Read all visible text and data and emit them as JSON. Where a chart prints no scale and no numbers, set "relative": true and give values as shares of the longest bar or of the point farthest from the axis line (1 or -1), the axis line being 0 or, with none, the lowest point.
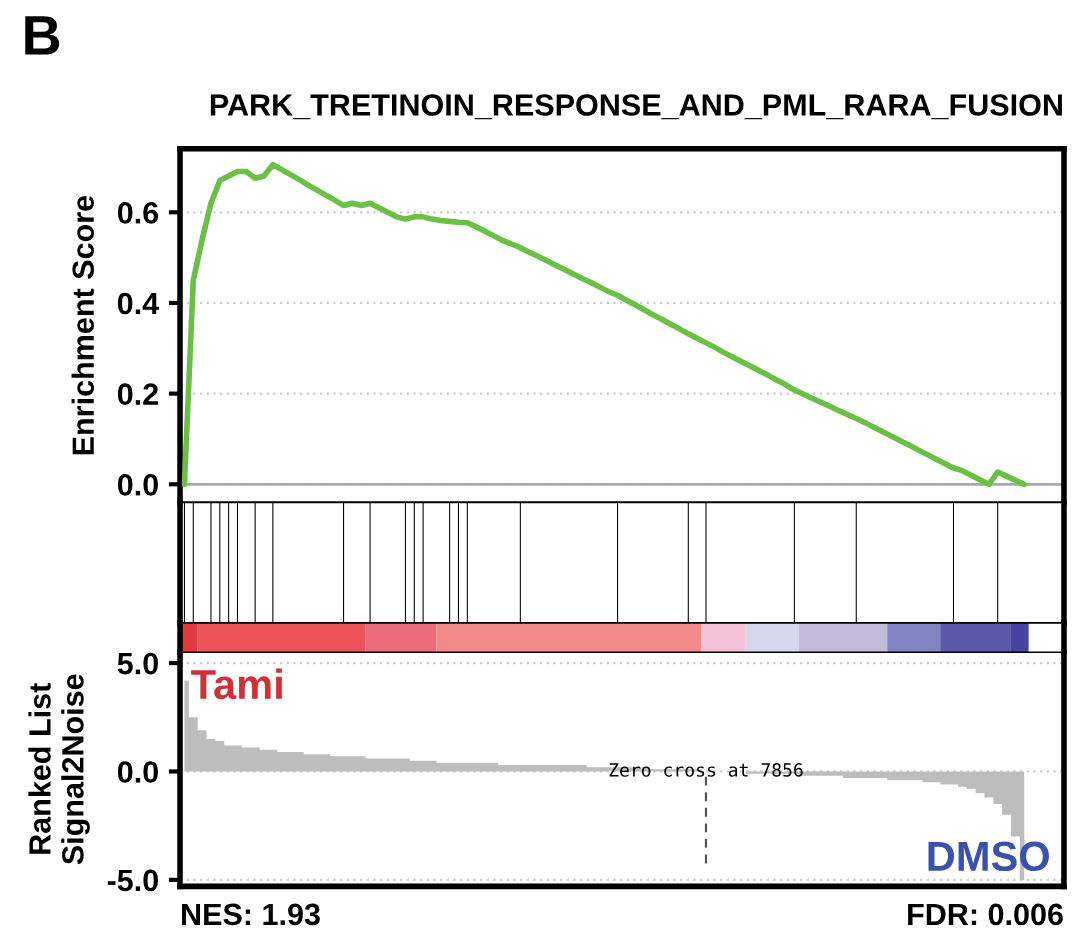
{
  "chart_data": [
    {
      "type": "line",
      "title": "PARK_TRETINOIN_RESPONSE_AND_PML_RARA_FUSION",
      "ylabel": "Enrichment Score",
      "annotations": [
        "B"
      ],
      "categories": [
        null,
        null,
        null,
        null,
        null,
        null,
        null,
        null,
        null,
        null,
        null,
        null,
        null,
        null,
        null,
        null,
        null,
        null,
        null,
        null,
        null,
        null,
        null,
        null,
        null,
        null,
        null,
        null,
        null,
        null,
        null,
        null,
        null,
        null,
        null,
        null,
        null,
        null,
        null,
        null,
        null,
        null,
        null,
        null,
        null,
        null,
        null,
        null,
        null,
        null,
        null,
        null,
        null,
        null,
        null,
        null,
        null,
        null,
        null,
        null,
        null,
        null,
        null,
        null,
        null,
        null,
        null,
        null,
        null,
        null,
        null,
        null,
        null,
        null,
        null,
        null,
        null,
        null,
        null,
        null,
        null,
        null,
        null,
        null,
        null,
        null,
        null,
        null,
        null,
        null,
        null,
        null,
        null,
        null,
        null,
        null,
        null,
        null,
        null,
        null
      ],
      "series": [
        {
          "color": "#6abf45",
          "values": [
            0.0,
            0.45,
            0.54,
            0.62,
            0.67,
            0.68,
            0.69,
            0.69,
            0.675,
            0.68,
            0.705,
            0.694,
            0.683,
            0.672,
            0.66,
            0.649,
            0.638,
            0.627,
            0.615,
            0.62,
            0.615,
            0.62,
            0.61,
            0.6,
            0.59,
            0.585,
            0.59,
            0.59,
            0.585,
            0.582,
            0.58,
            0.578,
            0.577,
            0.568,
            0.558,
            0.548,
            0.538,
            0.53,
            0.522,
            0.512,
            0.503,
            0.493,
            0.483,
            0.474,
            0.464,
            0.454,
            0.445,
            0.435,
            0.425,
            0.417,
            0.406,
            0.396,
            0.385,
            0.374,
            0.364,
            0.353,
            0.343,
            0.332,
            0.322,
            0.312,
            0.302,
            0.291,
            0.281,
            0.271,
            0.261,
            0.251,
            0.241,
            0.23,
            0.22,
            0.208,
            0.199,
            0.19,
            0.181,
            0.172,
            0.163,
            0.154,
            0.145,
            0.136,
            0.126,
            0.116,
            0.106,
            0.096,
            0.086,
            0.076,
            0.066,
            0.056,
            0.046,
            0.036,
            0.03,
            0.02,
            0.01,
            0.0,
            0.027,
            0.018,
            0.009,
            0.0,
            null,
            null,
            null,
            null
          ]
        }
      ],
      "ylim": [
        -0.04,
        0.74
      ],
      "yticks": [
        {
          "value": 0,
          "label": "0.0"
        },
        0.2,
        0.4,
        0.6
      ],
      "grid": "y",
      "tick_labels": "y",
      "ref_lines": [
        {
          "axis": "y",
          "value": 0,
          "color": "#aaaaaa"
        }
      ]
    },
    {
      "type": "bar",
      "relative": true,
      "tick_labels": false,
      "categories": [
        null,
        null,
        null,
        null,
        null,
        null,
        null,
        null,
        null,
        null,
        null,
        null,
        null,
        null,
        null,
        null,
        null,
        null,
        null,
        null,
        null,
        null,
        null,
        null,
        null,
        null,
        null,
        null,
        null,
        null,
        null,
        null,
        null,
        null,
        null,
        null,
        null,
        null,
        null,
        null,
        null,
        null,
        null,
        null,
        null,
        null,
        null,
        null,
        null,
        null,
        null,
        null,
        null,
        null,
        null,
        null,
        null,
        null,
        null,
        null,
        null,
        null,
        null,
        null,
        null,
        null,
        null,
        null,
        null,
        null,
        null,
        null,
        null,
        null,
        null,
        null,
        null,
        null,
        null,
        null,
        null,
        null,
        null,
        null,
        null,
        null,
        null,
        null,
        null,
        null,
        null,
        null,
        null,
        null,
        null,
        null,
        null,
        null,
        null,
        null
      ],
      "series": [
        {
          "color": "#000000",
          "values": [
            1,
            1,
            null,
            1,
            1,
            1,
            1,
            null,
            1,
            null,
            1,
            null,
            null,
            null,
            null,
            null,
            null,
            null,
            1,
            null,
            null,
            1,
            null,
            null,
            null,
            1,
            1,
            1,
            null,
            null,
            1,
            1,
            1,
            null,
            null,
            null,
            null,
            null,
            1,
            null,
            null,
            null,
            null,
            null,
            null,
            null,
            null,
            null,
            null,
            1,
            null,
            null,
            null,
            null,
            null,
            null,
            null,
            1,
            null,
            1,
            null,
            null,
            null,
            null,
            null,
            null,
            null,
            null,
            null,
            1,
            null,
            null,
            null,
            null,
            null,
            null,
            1,
            null,
            null,
            null,
            null,
            null,
            null,
            null,
            null,
            null,
            null,
            1,
            null,
            null,
            null,
            null,
            1,
            null,
            null,
            null,
            null,
            null,
            null,
            null
          ]
        }
      ]
    },
    {
      "type": "area",
      "ylabel": "Ranked List\nSignal2Noise",
      "annotations": [
        "Tami",
        "DMSO",
        "Zero cross at 7856",
        "NES: 1.93",
        "FDR: 0.006"
      ],
      "categories": [
        null,
        null,
        null,
        null,
        null,
        null,
        null,
        null,
        null,
        null,
        null,
        null,
        null,
        null,
        null,
        null,
        null,
        null,
        null,
        null,
        null,
        null,
        null,
        null,
        null,
        null,
        null,
        null,
        null,
        null,
        null,
        null,
        null,
        null,
        null,
        null,
        null,
        null,
        null,
        null,
        null,
        null,
        null,
        null,
        null,
        null,
        null,
        null,
        null,
        null,
        null,
        null,
        null,
        null,
        null,
        null,
        null,
        null,
        null,
        null,
        null,
        null,
        null,
        null,
        null,
        null,
        null,
        null,
        null,
        null,
        null,
        null,
        null,
        null,
        null,
        null,
        null,
        null,
        null,
        null,
        null,
        null,
        null,
        null,
        null,
        null,
        null,
        null,
        null,
        null,
        null,
        null,
        null,
        null,
        null,
        null,
        null,
        null,
        null,
        null
      ],
      "series": [
        {
          "color": "#bdbdbd",
          "values": [
            4.2,
            2.5,
            1.9,
            1.5,
            1.4,
            1.2,
            1.2,
            1.1,
            1.1,
            1.0,
            1.0,
            0.9,
            0.9,
            0.9,
            0.8,
            0.8,
            0.8,
            0.7,
            0.7,
            0.7,
            0.7,
            0.6,
            0.6,
            0.6,
            0.6,
            0.6,
            0.5,
            0.5,
            0.5,
            0.4,
            0.4,
            0.4,
            0.4,
            0.4,
            0.4,
            0.4,
            0.3,
            0.3,
            0.3,
            0.3,
            0.3,
            0.3,
            0.3,
            0.3,
            0.3,
            0.3,
            0.2,
            0.2,
            0.2,
            0.2,
            0.2,
            0.2,
            0.2,
            0.1,
            0.1,
            0.1,
            0.1,
            0.1,
            0.1,
            0.0,
            0.0,
            0.0,
            0.0,
            0.0,
            -0.1,
            -0.1,
            -0.1,
            -0.1,
            -0.1,
            -0.1,
            -0.2,
            -0.2,
            -0.2,
            -0.2,
            -0.2,
            -0.3,
            -0.3,
            -0.3,
            -0.3,
            -0.3,
            -0.4,
            -0.4,
            -0.4,
            -0.4,
            -0.5,
            -0.5,
            -0.6,
            -0.6,
            -0.7,
            -0.8,
            -1.0,
            -1.2,
            -1.5,
            -2.0,
            -3.0,
            -5.0,
            null,
            null,
            null,
            null
          ]
        }
      ],
      "ylim": [
        -5.3,
        5.5
      ],
      "yticks": [
        {
          "value": -5,
          "label": "-5.0"
        },
        {
          "value": 0,
          "label": "0.0"
        },
        {
          "value": 5,
          "label": "5.0"
        }
      ],
      "grid": "y",
      "tick_labels": "y"
    }
  ]
}
